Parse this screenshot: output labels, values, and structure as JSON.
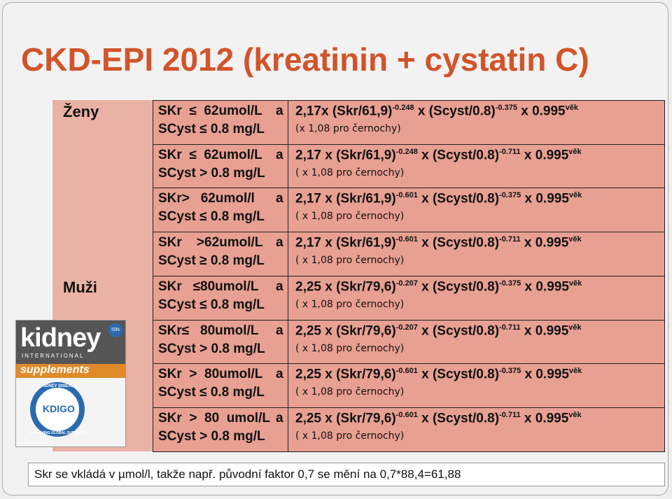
{
  "header": {
    "title": "CKD-EPI 2012 (kreatinin + cystatin C)"
  },
  "table": {
    "rows": [
      {
        "group": "Ženy",
        "cond1": "SKr  ≤  62umol/L",
        "conj": "a",
        "cond2": "SCyst ≤ 0.8 mg/L",
        "formula": [
          {
            "base": "2,17x (Skr/61,9)",
            "sup": "-0.248"
          },
          {
            "base": " x (Scyst/0.8)",
            "sup": "-0.375"
          },
          {
            "base": " x 0.995",
            "sup": "věk"
          }
        ],
        "note": "(x 1,08 pro černochy)"
      },
      {
        "cond1": "SKr  ≤  62umol/L",
        "conj": "a",
        "cond2": "SCyst > 0.8 mg/L",
        "formula": [
          {
            "base": "2,17 x (Skr/61,9)",
            "sup": "-0.248"
          },
          {
            "base": " x (Scyst/0.8)",
            "sup": "-0.711"
          },
          {
            "base": " x 0.995",
            "sup": "věk"
          }
        ],
        "note": "( x 1,08 pro černochy)"
      },
      {
        "cond1": "SKr>   62umol/l",
        "conj": "a",
        "cond2": "SCyst ≤ 0.8 mg/L",
        "formula": [
          {
            "base": "2,17 x (Skr/61,9)",
            "sup": "-0.601"
          },
          {
            "base": " x (Scyst/0.8)",
            "sup": "-0.375"
          },
          {
            "base": " x 0.995",
            "sup": "věk"
          }
        ],
        "note": "( x 1,08 pro černochy)"
      },
      {
        "cond1": "SKr    >62umol/L",
        "conj": "a",
        "cond2": "SCyst ≥ 0.8 mg/L",
        "formula": [
          {
            "base": "2,17 x (Skr/61,9)",
            "sup": "-0.601"
          },
          {
            "base": " x (Scyst/0.8)",
            "sup": "-0.711"
          },
          {
            "base": " x 0.995",
            "sup": "věk"
          }
        ],
        "note": "( x 1,08 pro černochy)"
      },
      {
        "group": "Muži",
        "cond1": "SKr   ≤80umol/L",
        "conj": "a",
        "cond2": "SCyst ≤ 0.8 mg/L",
        "formula": [
          {
            "base": "2,25 x (Skr/79,6)",
            "sup": "-0.207"
          },
          {
            "base": " x (Scyst/0.8)",
            "sup": "-0.375"
          },
          {
            "base": " x 0.995",
            "sup": "věk"
          }
        ],
        "note": "( x 1,08 pro černochy)"
      },
      {
        "cond1": "SKr≤   80umol/L",
        "conj": "a",
        "cond2": "SCyst > 0.8 mg/L",
        "formula": [
          {
            "base": "2,25 x (Skr/79,6)",
            "sup": "-0.207"
          },
          {
            "base": " x (Scyst/0.8)",
            "sup": "-0.711"
          },
          {
            "base": " x 0.995",
            "sup": "věk"
          }
        ],
        "note": "( x 1,08 pro černochy)"
      },
      {
        "cond1": "SKr  >  80umol/L",
        "conj": "a",
        "cond2": "SCyst ≤ 0.8 mg/L",
        "formula": [
          {
            "base": "2,25 x (Skr/79,6)",
            "sup": "-0.601"
          },
          {
            "base": " x (Scyst/0.8)",
            "sup": "-0.375"
          },
          {
            "base": " x 0.995",
            "sup": "věk"
          }
        ],
        "note": "( x 1,08 pro černochy)"
      },
      {
        "cond1": "SKr  >  80  umol/L",
        "conj": "a",
        "cond2": "SCyst > 0.8 mg/L",
        "formula": [
          {
            "base": "2,25 x (Skr/79,6)",
            "sup": "-0.601"
          },
          {
            "base": " x (Scyst/0.8)",
            "sup": "-0.711"
          },
          {
            "base": " x 0.995",
            "sup": "věk"
          }
        ],
        "note": "( x 1,08 pro černochy)"
      }
    ]
  },
  "cover": {
    "brand": "kidney",
    "subbrand": "INTERNATIONAL",
    "series": "supplements",
    "badge": "ISN",
    "ring_top": "KIDNEY DISEASE",
    "ring_bottom": "IMPROVING GLOBAL OUTCOMES",
    "logo": "KDIGO"
  },
  "footer": {
    "note": "Skr se vkládá v µmol/l, takže např. původní faktor 0,7 se mění na 0,7*88,4=61,88"
  }
}
